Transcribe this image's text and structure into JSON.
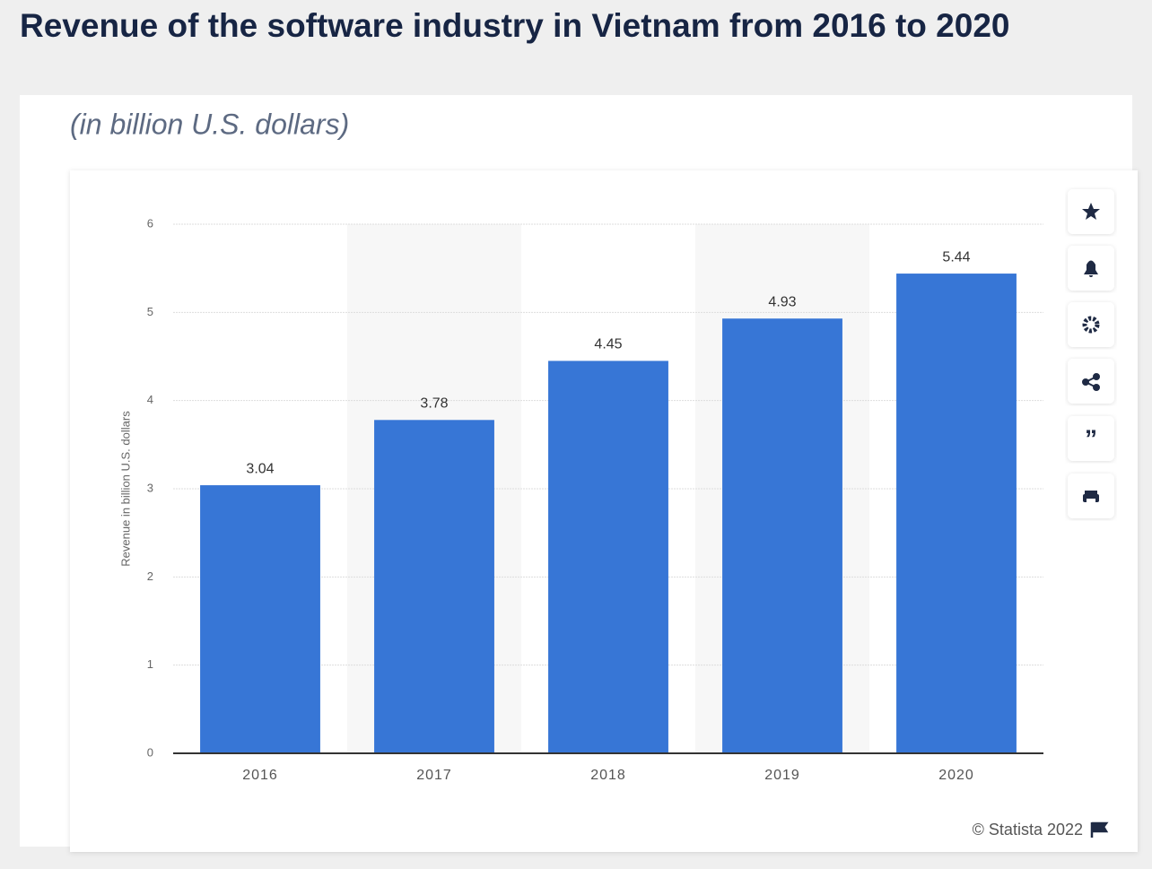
{
  "chart_data": {
    "type": "bar",
    "title": "Revenue of the software industry in Vietnam from 2016 to 2020",
    "subtitle": "(in billion U.S. dollars)",
    "y_axis_label": "Revenue in billion U.S. dollars",
    "categories": [
      "2016",
      "2017",
      "2018",
      "2019",
      "2020"
    ],
    "values": [
      3.04,
      3.78,
      4.45,
      4.93,
      5.44
    ],
    "color": "#3776d6",
    "ylim": [
      0,
      6
    ],
    "yticks": [
      0,
      1,
      2,
      3,
      4,
      5,
      6
    ],
    "grid": true,
    "source": "© Statista 2022"
  }
}
